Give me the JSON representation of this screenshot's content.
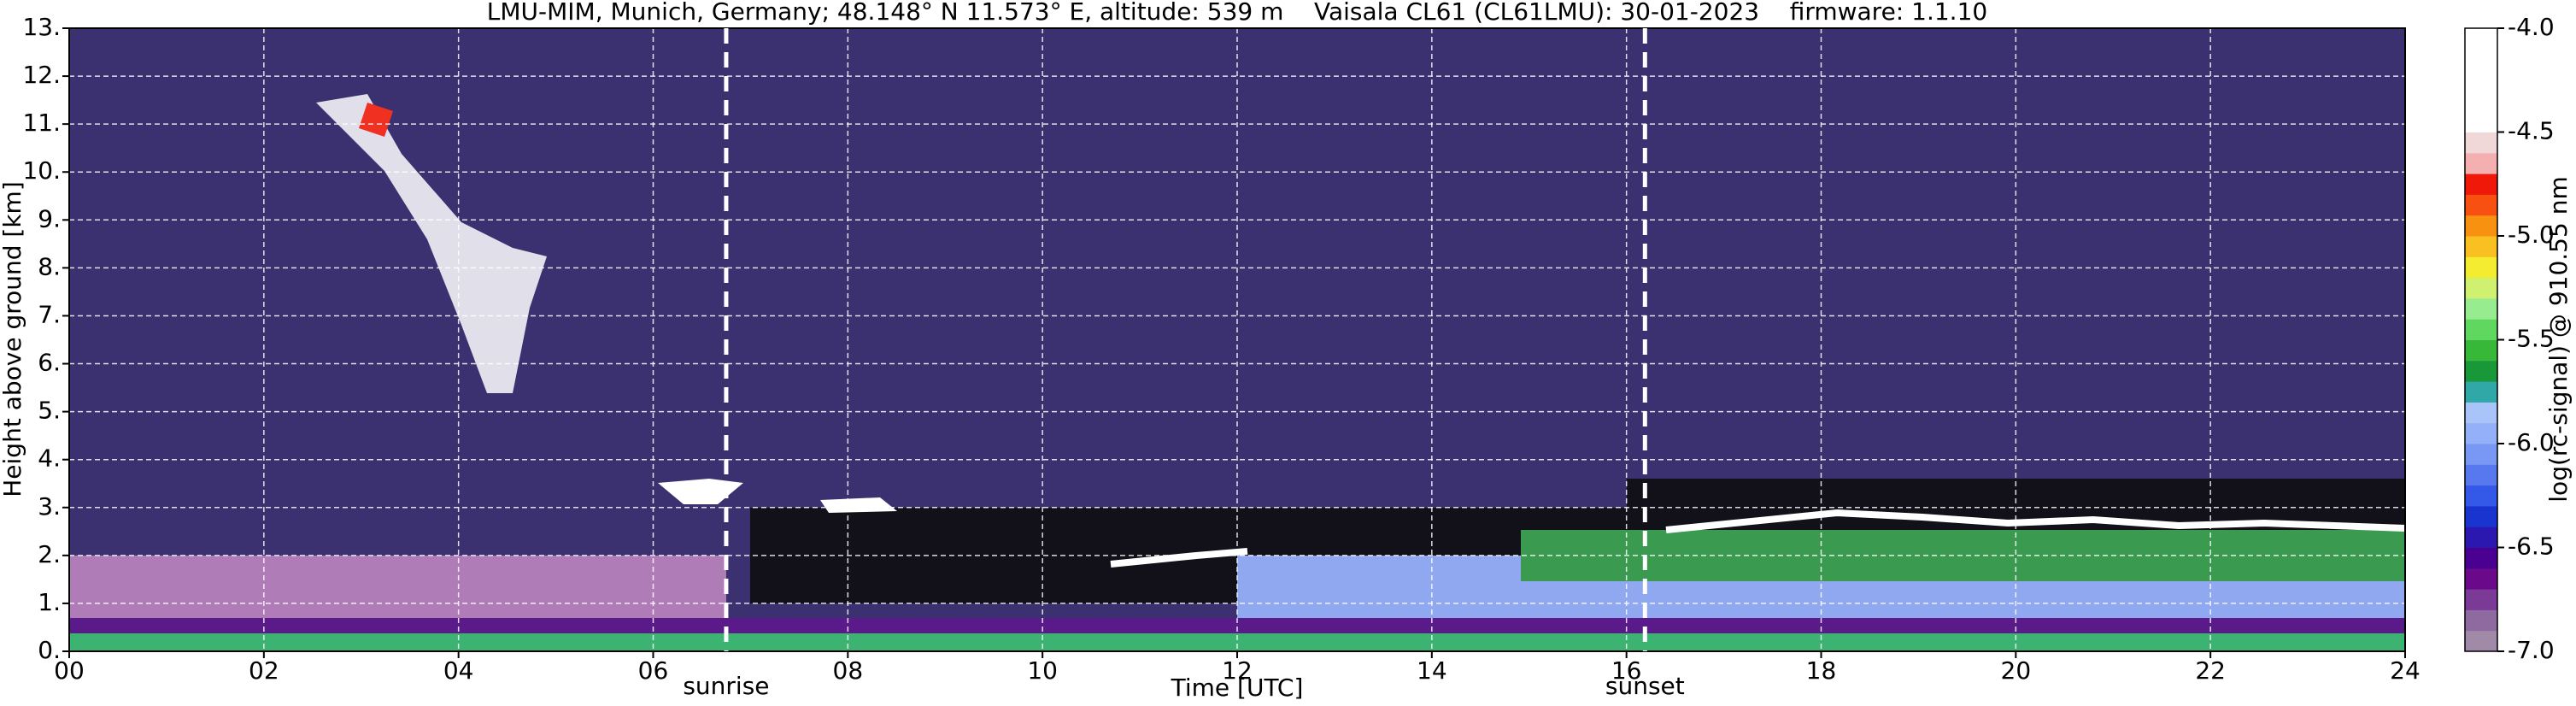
{
  "chart_data": {
    "type": "heatmap",
    "title": "LMU-MIM, Munich, Germany; 48.148° N 11.573° E, altitude: 539 m    Vaisala CL61 (CL61LMU): 30-01-2023    firmware: 1.1.10",
    "xlabel": "Time [UTC]",
    "ylabel": "Height above ground [km]",
    "xlim": [
      0,
      24
    ],
    "ylim": [
      0,
      13
    ],
    "xticks": [
      {
        "value": 0,
        "label": "00"
      },
      {
        "value": 2,
        "label": "02"
      },
      {
        "value": 4,
        "label": "04"
      },
      {
        "value": 6,
        "label": "06"
      },
      {
        "value": 8,
        "label": "08"
      },
      10,
      12,
      14,
      16,
      18,
      20,
      22,
      24
    ],
    "yticks": [
      {
        "value": 0,
        "label": "0."
      },
      {
        "value": 1,
        "label": "1."
      },
      {
        "value": 2,
        "label": "2."
      },
      {
        "value": 3,
        "label": "3."
      },
      {
        "value": 4,
        "label": "4."
      },
      {
        "value": 5,
        "label": "5."
      },
      {
        "value": 6,
        "label": "6."
      },
      {
        "value": 7,
        "label": "7."
      },
      {
        "value": 8,
        "label": "8."
      },
      {
        "value": 9,
        "label": "9."
      },
      {
        "value": 10,
        "label": "10."
      },
      {
        "value": 11,
        "label": "11."
      },
      {
        "value": 12,
        "label": "12."
      },
      {
        "value": 13,
        "label": "13."
      }
    ],
    "grid": true,
    "annotations": [
      {
        "text": "sunrise",
        "x": 6.75
      },
      {
        "text": "sunset",
        "x": 16.19
      }
    ],
    "colorbar": {
      "label": "log(rc-signal) @ 910.55 nm",
      "lim": [
        -7,
        -4
      ],
      "ticks": [
        {
          "value": -4,
          "label": "-4.0"
        },
        {
          "value": -4.5,
          "label": "-4.5"
        },
        {
          "value": -5,
          "label": "-5.0"
        },
        {
          "value": -5.5,
          "label": "-5.5"
        },
        {
          "value": -6,
          "label": "-6.0"
        },
        {
          "value": -6.5,
          "label": "-6.5"
        },
        {
          "value": -7,
          "label": "-7.0"
        }
      ],
      "colors": [
        "#a08aa8",
        "#8e6aa0",
        "#7a3a96",
        "#6a0a8a",
        "#4a0090",
        "#2a18b0",
        "#1a34d0",
        "#3458e8",
        "#5878f0",
        "#7898f4",
        "#94b0f8",
        "#a8c4f8",
        "#30a8a8",
        "#189838",
        "#38b838",
        "#60d860",
        "#98ec90",
        "#d0f070",
        "#f4ec30",
        "#f8c020",
        "#f89010",
        "#f85010",
        "#f01808",
        "#f4b0b0",
        "#f0d8d8",
        "#ffffff",
        "#ffffff",
        "#ffffff",
        "#ffffff",
        "#ffffff"
      ]
    }
  }
}
